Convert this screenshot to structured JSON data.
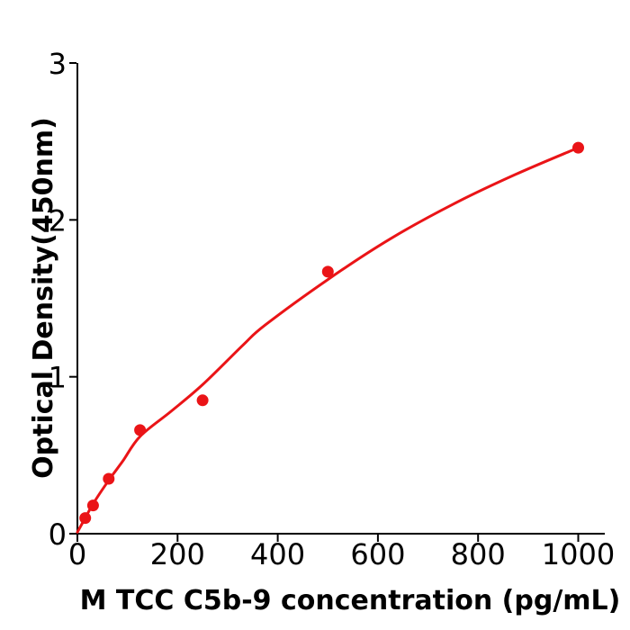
{
  "figure": {
    "background_color": "#ffffff",
    "axis_color": "#000000",
    "accent_color": "#ea1417"
  },
  "chart_data": {
    "type": "scatter",
    "title": "",
    "xlabel": "M  TCC C5b-9 concentration (pg/mL)",
    "ylabel": "Optical Density(450nm)",
    "xlim": [
      0,
      1053
    ],
    "ylim": [
      0,
      3
    ],
    "xticks": [
      0,
      200,
      400,
      600,
      800,
      1000
    ],
    "yticks": [
      0,
      1,
      2,
      3
    ],
    "grid": false,
    "legend_position": "none",
    "series": [
      {
        "name": "standard-points",
        "type": "scatter",
        "color": "#ea1417",
        "marker": "circle",
        "x": [
          15.6,
          31.25,
          62.5,
          125,
          250,
          500,
          1000
        ],
        "y": [
          0.1,
          0.18,
          0.35,
          0.66,
          0.85,
          1.67,
          2.46
        ]
      },
      {
        "name": "fitted-curve",
        "type": "line",
        "color": "#ea1417",
        "x": [
          0,
          15.6,
          31.25,
          62.5,
          90,
          125,
          187,
          250,
          330,
          375,
          500,
          625,
          750,
          875,
          1000
        ],
        "y": [
          0.01,
          0.1,
          0.19,
          0.34,
          0.46,
          0.62,
          0.78,
          0.95,
          1.2,
          1.33,
          1.62,
          1.88,
          2.1,
          2.29,
          2.46
        ]
      }
    ]
  }
}
